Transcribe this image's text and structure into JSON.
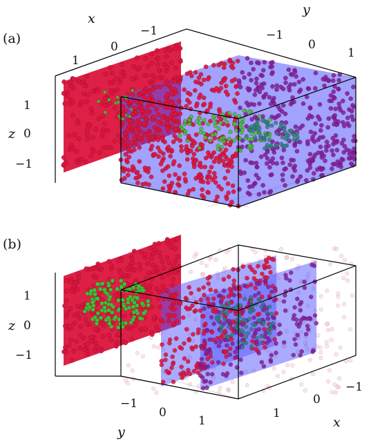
{
  "panels": [
    {
      "label": "(a)",
      "axis_labels": {
        "x": "x",
        "y": "y",
        "z": "z"
      },
      "x_ticks": [
        "1",
        "0",
        "−1"
      ],
      "y_ticks": [
        "−1",
        "0",
        "1"
      ],
      "z_ticks": [
        "1",
        "0",
        "−1"
      ]
    },
    {
      "label": "(b)",
      "axis_labels": {
        "x": "x",
        "y": "y",
        "z": "z"
      },
      "x_ticks": [
        "1",
        "0",
        "−1"
      ],
      "y_ticks": [
        "−1",
        "0",
        "1"
      ],
      "z_ticks": [
        "1",
        "0",
        "−1"
      ]
    }
  ],
  "colors": {
    "outer_points": "#dc143c",
    "inner_points": "#32cd32",
    "plane_fill": "#5555ff",
    "faded_points": "#f2b8c6"
  }
}
